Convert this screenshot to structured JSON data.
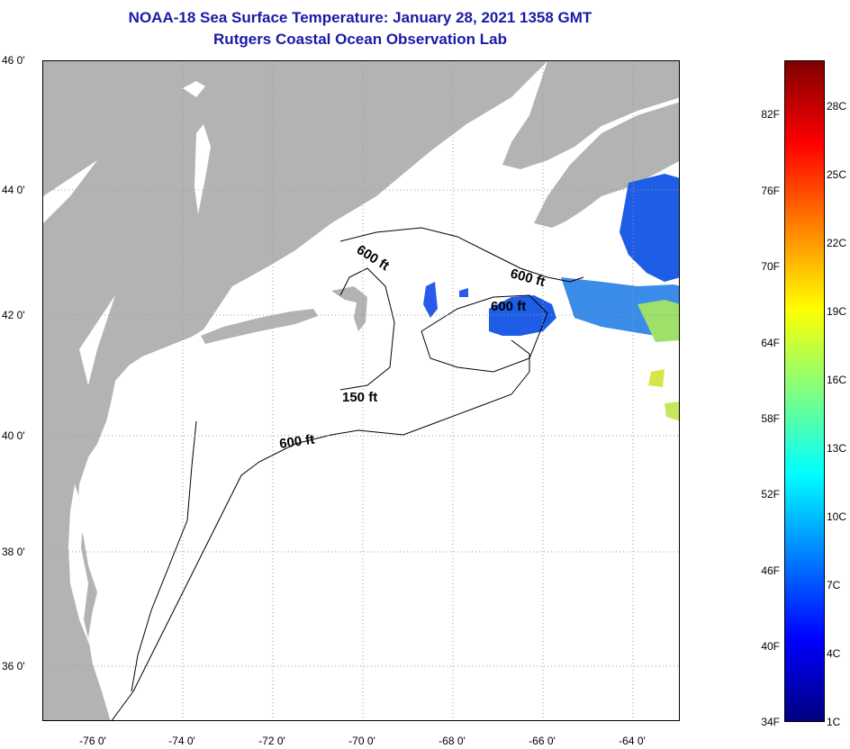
{
  "title": {
    "line1": "NOAA-18 Sea Surface Temperature:  January 28, 2021 1358 GMT",
    "line2": "Rutgers Coastal Ocean Observation Lab"
  },
  "map": {
    "lat_labels": [
      "46 0'",
      "44 0'",
      "42 0'",
      "40 0'",
      "38 0'",
      "36 0'"
    ],
    "lon_labels": [
      "-76 0'",
      "-74 0'",
      "-72 0'",
      "-70 0'",
      "-68 0'",
      "-66 0'",
      "-64 0'"
    ],
    "contour_labels": [
      "600 ft",
      "600 ft",
      "600 ft",
      "150 ft",
      "600 ft"
    ],
    "colors": {
      "land": "#b3b3b3",
      "ocean": "#ffffff",
      "contour": "#000000"
    }
  },
  "colorbar": {
    "f_labels": [
      "82F",
      "76F",
      "70F",
      "64F",
      "58F",
      "52F",
      "46F",
      "40F",
      "34F"
    ],
    "c_labels": [
      "28C",
      "25C",
      "22C",
      "19C",
      "16C",
      "13C",
      "10C",
      "7C",
      "4C",
      "1C"
    ],
    "gradient": [
      "#000080",
      "#0000ff",
      "#0080ff",
      "#00ffff",
      "#80ff80",
      "#ffff00",
      "#ff8000",
      "#ff0000",
      "#800000"
    ]
  }
}
